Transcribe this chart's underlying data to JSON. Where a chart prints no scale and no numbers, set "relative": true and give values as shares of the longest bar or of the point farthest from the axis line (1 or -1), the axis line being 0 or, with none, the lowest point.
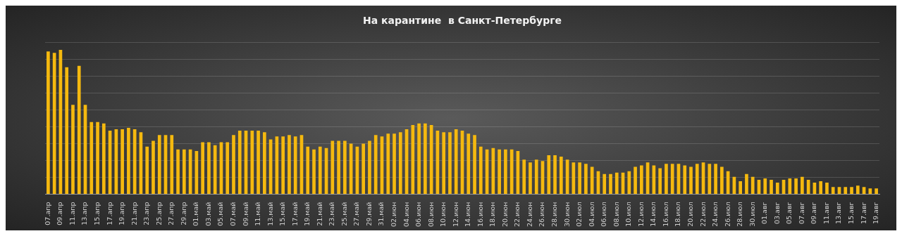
{
  "chart_data": {
    "type": "bar",
    "title": "На карантине  в Санкт-Петербурге",
    "relative": true,
    "grid": "y",
    "color": "#f5b90f",
    "categories": [
      "07.апр",
      null,
      "09.апр",
      null,
      "11.апр",
      null,
      "13.апр",
      null,
      "15.апр",
      null,
      "17.апр",
      null,
      "19.апр",
      null,
      "21.апр",
      null,
      "23.апр",
      null,
      "25.апр",
      null,
      "27.апр",
      null,
      "29.апр",
      null,
      "01.май",
      null,
      "03.май",
      null,
      "05.май",
      null,
      "07.май",
      null,
      "09.май",
      null,
      "11.май",
      null,
      "13.май",
      null,
      "15.май",
      null,
      "17.май",
      null,
      "19.май",
      null,
      "21.май",
      null,
      "23.май",
      null,
      "25.май",
      null,
      "27.май",
      null,
      "29.май",
      null,
      "31.май",
      null,
      "02.июн",
      null,
      "04.июн",
      null,
      "06.июн",
      null,
      "08.июн",
      null,
      "10.июн",
      null,
      "12.июн",
      null,
      "14.июн",
      null,
      "16.июн",
      null,
      "18.июн",
      null,
      "20.июн",
      null,
      "22.июн",
      null,
      "24.июн",
      null,
      "26.июн",
      null,
      "28.июн",
      null,
      "30.июн",
      null,
      "02.июл",
      null,
      "04.июл",
      null,
      "06.июл",
      null,
      "08.июл",
      null,
      "10.июл",
      null,
      "12.июл",
      null,
      "14.июл",
      null,
      "16.июл",
      null,
      "18.июл",
      null,
      "20.июл",
      null,
      "22.июл",
      null,
      "24.июл",
      null,
      "26.июл",
      null,
      "28.июл",
      null,
      "30.июл",
      null,
      "01.авг",
      null,
      "03.авг",
      null,
      "05.авг",
      null,
      "07.авг",
      null,
      "09.авг",
      null,
      "11.авг",
      null,
      "13.авг",
      null,
      "15.авг",
      null,
      "17.авг",
      null,
      "19.авг"
    ],
    "values": [
      0.99,
      0.98,
      1.0,
      0.88,
      0.62,
      0.89,
      0.62,
      0.5,
      0.5,
      0.49,
      0.44,
      0.45,
      0.45,
      0.46,
      0.45,
      0.43,
      0.33,
      0.37,
      0.41,
      0.41,
      0.41,
      0.31,
      0.31,
      0.31,
      0.3,
      0.36,
      0.36,
      0.34,
      0.36,
      0.36,
      0.41,
      0.44,
      0.44,
      0.44,
      0.44,
      0.43,
      0.38,
      0.4,
      0.4,
      0.41,
      0.4,
      0.41,
      0.33,
      0.31,
      0.33,
      0.32,
      0.37,
      0.37,
      0.37,
      0.35,
      0.33,
      0.35,
      0.37,
      0.41,
      0.4,
      0.42,
      0.42,
      0.43,
      0.45,
      0.48,
      0.49,
      0.49,
      0.48,
      0.44,
      0.43,
      0.43,
      0.45,
      0.44,
      0.42,
      0.41,
      0.33,
      0.31,
      0.32,
      0.31,
      0.31,
      0.31,
      0.3,
      0.24,
      0.22,
      0.24,
      0.23,
      0.27,
      0.27,
      0.26,
      0.24,
      0.22,
      0.22,
      0.21,
      0.19,
      0.16,
      0.14,
      0.14,
      0.15,
      0.15,
      0.16,
      0.19,
      0.2,
      0.22,
      0.2,
      0.18,
      0.21,
      0.21,
      0.21,
      0.2,
      0.19,
      0.21,
      0.22,
      0.21,
      0.21,
      0.19,
      0.16,
      0.12,
      0.09,
      0.14,
      0.12,
      0.1,
      0.11,
      0.1,
      0.08,
      0.1,
      0.11,
      0.11,
      0.12,
      0.1,
      0.08,
      0.09,
      0.08,
      0.05,
      0.05,
      0.05,
      0.05,
      0.06,
      0.05,
      0.04,
      0.04
    ]
  }
}
